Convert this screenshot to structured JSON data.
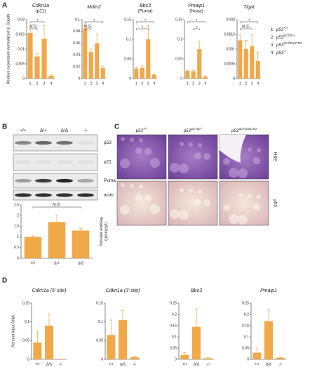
{
  "panels": [
    "A",
    "B",
    "C",
    "D"
  ],
  "genotypes": [
    {
      "number": "1:",
      "name": "p53",
      "sup": "+/+"
    },
    {
      "number": "2:",
      "name": "p53",
      "sup": "ΔCTD/+"
    },
    {
      "number": "3:",
      "name": "p53",
      "sup": "ΔCTD/ΔCTD"
    },
    {
      "number": "4:",
      "name": "p53",
      "sup": "-/-"
    }
  ],
  "blot": {
    "lanes": [
      "+/+",
      "Δ/+",
      "Δ/Δ",
      "-/-"
    ],
    "rows": [
      "p53",
      "p21",
      "Puma",
      "actin"
    ]
  },
  "histology": {
    "columns": [
      {
        "name": "p53",
        "sup": "+/+"
      },
      {
        "name": "p53",
        "sup": "ΔCTD/+"
      },
      {
        "name": "p53",
        "sup": "ΔCTD/ΔCTD"
      }
    ],
    "rows": [
      "H&E",
      "p53"
    ]
  },
  "chart_data": [
    {
      "type": "bar",
      "title": "Cdkn1a",
      "subtitle": "(p21)",
      "y_label": [
        "Relative expression normalized to Gapdh"
      ],
      "color": "#f0a848",
      "categories": [
        "1",
        "2",
        "3",
        "4"
      ],
      "values": [
        0.0155,
        0.0075,
        0.0135,
        0.001
      ],
      "errors": [
        0.002,
        0.001,
        0.0045,
        0.0003
      ],
      "ylim": [
        0,
        0.02
      ],
      "yticks": [
        0,
        0.005,
        0.01,
        0.015,
        0.02
      ],
      "annotations": [
        {
          "text": "*",
          "between": [
            "1",
            "3"
          ]
        },
        {
          "text": "N.S.",
          "between": [
            "1",
            "2"
          ]
        }
      ]
    },
    {
      "type": "bar",
      "title": "Mdm2",
      "color": "#f0a848",
      "categories": [
        "1",
        "2",
        "3",
        "4"
      ],
      "values": [
        0.085,
        0.045,
        0.06,
        0.018
      ],
      "errors": [
        0.01,
        0.005,
        0.015,
        0.003
      ],
      "ylim": [
        0,
        0.1
      ],
      "yticks": [
        0,
        0.02,
        0.04,
        0.06,
        0.08,
        0.1
      ],
      "annotations": [
        {
          "text": "*",
          "between": [
            "1",
            "4"
          ]
        },
        {
          "text": "N.S.",
          "between": [
            "1",
            "2"
          ]
        }
      ]
    },
    {
      "type": "bar",
      "title": "Bbc3",
      "subtitle": "(Puma)",
      "color": "#f0a848",
      "categories": [
        "1",
        "2",
        "3",
        "4"
      ],
      "values": [
        0.025,
        0.027,
        0.1,
        0.01
      ],
      "errors": [
        0.003,
        0.005,
        0.035,
        0.002
      ],
      "ylim": [
        0,
        0.15
      ],
      "yticks": [
        0,
        0.05,
        0.1,
        0.15
      ],
      "annotations": [
        {
          "text": "*",
          "between": [
            "1",
            "4"
          ]
        },
        {
          "text": "*",
          "between": [
            "1",
            "3"
          ]
        }
      ]
    },
    {
      "type": "bar",
      "title": "Pmaip1",
      "subtitle": "(Noxa)",
      "color": "#f0a848",
      "categories": [
        "1",
        "2",
        "3",
        "4"
      ],
      "values": [
        0.02,
        0.019,
        0.075,
        0.005
      ],
      "errors": [
        0.002,
        0.003,
        0.02,
        0.002
      ],
      "ylim": [
        0,
        0.15
      ],
      "yticks": [
        0,
        0.05,
        0.1,
        0.15
      ],
      "annotations": [
        {
          "text": "*",
          "between": [
            "1",
            "4"
          ]
        },
        {
          "text": "*",
          "between": [
            "2",
            "3"
          ]
        }
      ]
    },
    {
      "type": "bar",
      "title": "Tigar",
      "color": "#f0a848",
      "categories": [
        "1",
        "2",
        "3",
        "4"
      ],
      "values": [
        0.0013,
        0.001,
        0.0011,
        0.0006
      ],
      "errors": [
        0.0002,
        0.0003,
        0.0004,
        0.0003
      ],
      "ylim": [
        0,
        0.002
      ],
      "yticks": [
        0,
        0.0005,
        0.001,
        0.0015,
        0.002
      ],
      "annotations": [
        {
          "text": "*",
          "between": [
            "1",
            "4"
          ]
        },
        {
          "text": "N.S.",
          "between": [
            "1",
            "3"
          ]
        }
      ]
    },
    {
      "type": "bar",
      "y_label": [
        "Relative intensity",
        "(p53/actin)"
      ],
      "y_label_side": "right",
      "color": "#f0a848",
      "categories": [
        "+/+",
        "Δ/+",
        "Δ/Δ"
      ],
      "values": [
        1,
        1.7,
        1.3
      ],
      "errors": [
        0.05,
        0.3,
        0.1
      ],
      "ylim": [
        0,
        2.5
      ],
      "yticks": [
        0,
        0.5,
        1,
        1.5,
        2,
        2.5
      ],
      "annotations": [
        {
          "text": "N.S.",
          "between": [
            "+/+",
            "Δ/Δ"
          ]
        }
      ]
    },
    {
      "type": "bar",
      "title": "Cdkn1a (5' site)",
      "y_label": [
        "Percent input DNA"
      ],
      "color": "#f0a848",
      "categories": [
        "+/+",
        "Δ/Δ",
        "-/-"
      ],
      "values": [
        0.045,
        0.09,
        0.001
      ],
      "errors": [
        0.03,
        0.03,
        0
      ],
      "ylim": [
        0,
        0.15
      ],
      "yticks": [
        0,
        0.05,
        0.1,
        0.15
      ]
    },
    {
      "type": "bar",
      "title": "Cdkn1a (3' site)",
      "color": "#f0a848",
      "categories": [
        "+/+",
        "Δ/Δ",
        "-/-"
      ],
      "values": [
        0.065,
        0.105,
        0.006
      ],
      "errors": [
        0.04,
        0.025,
        0.002
      ],
      "ylim": [
        0,
        0.15
      ],
      "yticks": [
        0,
        0.05,
        0.1,
        0.15
      ]
    },
    {
      "type": "bar",
      "title": "Bbc3",
      "color": "#f0a848",
      "categories": [
        "+/+",
        "Δ/Δ",
        "-/-"
      ],
      "values": [
        0.02,
        0.145,
        0.005
      ],
      "errors": [
        0.01,
        0.08,
        0.002
      ],
      "ylim": [
        0,
        0.25
      ],
      "yticks": [
        0,
        0.05,
        0.1,
        0.15,
        0.2,
        0.25
      ]
    },
    {
      "type": "bar",
      "title": "Pmaip1",
      "color": "#f0a848",
      "categories": [
        "+/+",
        "Δ/Δ",
        "-/-"
      ],
      "values": [
        0.03,
        0.17,
        0.007
      ],
      "errors": [
        0.02,
        0.05,
        0.002
      ],
      "ylim": [
        0,
        0.25
      ],
      "yticks": [
        0,
        0.05,
        0.1,
        0.15,
        0.2,
        0.25
      ]
    }
  ]
}
